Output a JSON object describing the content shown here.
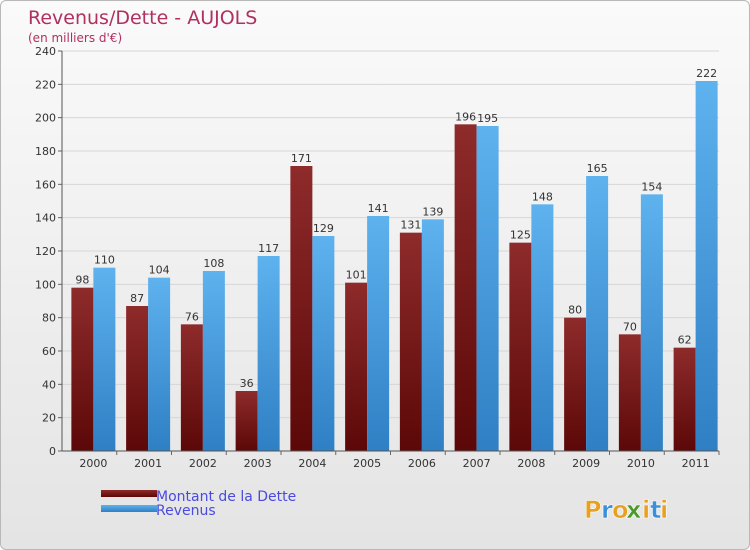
{
  "chart_data": {
    "type": "bar",
    "title": "Revenus/Dette - AUJOLS",
    "subtitle": "(en milliers d'€)",
    "categories": [
      "2000",
      "2001",
      "2002",
      "2003",
      "2004",
      "2005",
      "2006",
      "2007",
      "2008",
      "2009",
      "2010",
      "2011"
    ],
    "series": [
      {
        "name": "Montant de la Dette",
        "values": [
          98,
          87,
          76,
          36,
          171,
          101,
          131,
          196,
          125,
          80,
          70,
          62
        ],
        "color": "#7b1a1a"
      },
      {
        "name": "Revenus",
        "values": [
          110,
          104,
          108,
          117,
          129,
          141,
          139,
          195,
          148,
          165,
          154,
          222
        ],
        "color": "#4ea6e6"
      }
    ],
    "yticks": [
      0,
      20,
      40,
      60,
      80,
      100,
      120,
      140,
      160,
      180,
      200,
      220,
      240
    ],
    "ylim": [
      0,
      240
    ],
    "grid": true,
    "legend_position": "bottom-left"
  },
  "branding": {
    "logo_text": "Proxiti",
    "logo_letters": [
      "P",
      "r",
      "o",
      "x",
      "i",
      "t",
      "i"
    ],
    "logo_colors": [
      "#e8a020",
      "#3a8fd8",
      "#e8a020",
      "#4a9a2a",
      "#e8a020",
      "#3a8fd8",
      "#e8a020"
    ]
  },
  "colors": {
    "title": "#b03060",
    "legend_text": "#4a4ae0",
    "axis_text": "#333333",
    "grid": "#d6d6d6"
  }
}
